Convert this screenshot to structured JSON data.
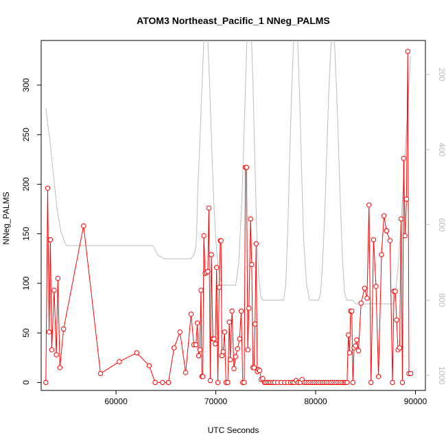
{
  "chart_data": {
    "type": "line",
    "title": "ATOM3 Northeast_Pacific_1 NNeg_PALMS",
    "xlabel": "UTC Seconds",
    "ylabel": "NNeg_PALMS",
    "xlim": [
      52500,
      91000
    ],
    "ylim": [
      -8,
      345
    ],
    "x_ticks": [
      60000,
      70000,
      80000,
      90000
    ],
    "y_ticks": [
      0,
      50,
      100,
      150,
      200,
      250,
      300
    ],
    "right_axis": {
      "ylim": [
        1040,
        110
      ],
      "ticks": [
        200,
        400,
        600,
        800,
        1000
      ],
      "color": "#bbbbbb"
    },
    "grid": false,
    "legend": "none",
    "colors": {
      "series": "#ff0000",
      "secondary": "#bbbbbb",
      "axis": "#000000"
    },
    "series": [
      {
        "color": "#ff0000",
        "marker": "open-circle",
        "x": [
          52970,
          53150,
          53300,
          53420,
          53560,
          53800,
          54020,
          54180,
          54380,
          54750,
          56750,
          58450,
          60330,
          62070,
          63320,
          63920,
          64660,
          65250,
          65820,
          66410,
          66980,
          67520,
          67800,
          68000,
          68150,
          68280,
          68400,
          68510,
          68600,
          68700,
          68800,
          68930,
          69050,
          69200,
          69300,
          69450,
          69550,
          69700,
          69820,
          69950,
          70080,
          70200,
          70340,
          70450,
          70520,
          70610,
          70730,
          70880,
          71020,
          71200,
          71350,
          71450,
          71620,
          71820,
          71980,
          72180,
          72380,
          72550,
          72700,
          72840,
          72970,
          73080,
          73200,
          73320,
          73480,
          73600,
          73720,
          73830,
          73930,
          74040,
          74150,
          74280,
          74400,
          74550,
          74700,
          74870,
          75000,
          75200,
          75350,
          75500,
          75700,
          75900,
          76200,
          76550,
          76900,
          77200,
          77500,
          77700,
          77850,
          78050,
          78250,
          78450,
          78650,
          78850,
          79050,
          79250,
          79450,
          79650,
          79850,
          80050,
          80250,
          80450,
          80650,
          80850,
          81050,
          81250,
          81450,
          81650,
          81850,
          82050,
          82250,
          82450,
          82650,
          82850,
          83000,
          83150,
          83280,
          83400,
          83500,
          83620,
          83730,
          83860,
          84000,
          84120,
          84300,
          84550,
          84900,
          85150,
          85350,
          85550,
          85800,
          86050,
          86300,
          86600,
          86850,
          87100,
          87450,
          87700,
          87850,
          87980,
          88120,
          88260,
          88420,
          88560,
          88700,
          88820,
          88950,
          89100,
          89230,
          89350,
          89530
        ],
        "y": [
          0,
          196,
          51,
          144,
          33,
          93,
          28,
          105,
          15,
          54,
          158,
          9,
          21,
          30,
          17,
          0,
          0,
          0,
          35,
          51,
          10,
          69,
          38,
          38,
          60,
          27,
          33,
          93,
          6,
          6,
          148,
          110,
          111,
          112,
          176,
          2,
          129,
          44,
          44,
          39,
          116,
          0,
          96,
          143,
          143,
          27,
          31,
          51,
          0,
          0,
          61,
          23,
          72,
          14,
          26,
          34,
          44,
          72,
          0,
          0,
          217,
          217,
          33,
          75,
          165,
          119,
          15,
          15,
          59,
          140,
          11,
          13,
          12,
          3,
          4,
          0,
          0,
          0,
          0,
          0,
          0,
          0,
          0,
          0,
          0,
          0,
          0,
          0,
          0,
          2,
          0,
          0,
          3,
          0,
          0,
          0,
          0,
          0,
          0,
          0,
          0,
          0,
          0,
          0,
          0,
          0,
          0,
          0,
          0,
          0,
          0,
          0,
          0,
          0,
          0,
          0,
          48,
          30,
          72,
          72,
          0,
          35,
          37,
          43,
          32,
          80,
          95,
          85,
          179,
          0,
          144,
          97,
          6,
          129,
          168,
          153,
          143,
          0,
          92,
          92,
          63,
          33,
          35,
          165,
          0,
          226,
          148,
          185,
          334,
          9,
          9
        ]
      },
      {
        "color": "#bbbbbb",
        "axis": "right",
        "marker": "none",
        "x": [
          52970,
          53200,
          53400,
          53700,
          54100,
          54500,
          55000,
          57000,
          60000,
          63000,
          63700,
          64200,
          64800,
          66000,
          67000,
          67500,
          67800,
          68000,
          68100,
          68200,
          68400,
          68600,
          68800,
          69000,
          69200,
          69400,
          69600,
          69800,
          70000,
          70200,
          70400,
          70600,
          70800,
          71000,
          71200,
          71400,
          71700,
          72000,
          72300,
          72600,
          72900,
          73100,
          73300,
          73500,
          73700,
          73900,
          74100,
          74300,
          74500,
          74700,
          74900,
          75100,
          75300,
          75600,
          76000,
          76400,
          76800,
          77000,
          77200,
          77400,
          77600,
          77800,
          78000,
          78200,
          78400,
          78600,
          78800,
          79100,
          79400,
          79700,
          80000,
          80300,
          80500,
          80700,
          80900,
          81100,
          81300,
          81500,
          81700,
          81900,
          82100,
          82300,
          82500,
          82700,
          82900,
          83100,
          83400,
          83700,
          84000,
          84500,
          85000,
          85500,
          86000,
          86500,
          87000,
          87500,
          87800,
          88000,
          88300,
          88600,
          88900,
          89200,
          89500
        ],
        "y": [
          290,
          340,
          380,
          460,
          560,
          620,
          655,
          655,
          655,
          655,
          655,
          680,
          690,
          690,
          690,
          690,
          680,
          660,
          600,
          500,
          380,
          240,
          110,
          60,
          110,
          240,
          400,
          540,
          640,
          700,
          740,
          760,
          760,
          760,
          760,
          760,
          760,
          760,
          700,
          540,
          300,
          120,
          40,
          60,
          200,
          420,
          620,
          740,
          790,
          800,
          800,
          800,
          800,
          800,
          800,
          800,
          800,
          760,
          620,
          420,
          240,
          110,
          60,
          110,
          260,
          460,
          640,
          760,
          800,
          800,
          800,
          800,
          780,
          700,
          580,
          420,
          260,
          140,
          80,
          120,
          240,
          400,
          560,
          700,
          780,
          800,
          800,
          800,
          810,
          810,
          810,
          810,
          810,
          810,
          810,
          810,
          810,
          780,
          700,
          580,
          440,
          300,
          150
        ]
      }
    ]
  }
}
